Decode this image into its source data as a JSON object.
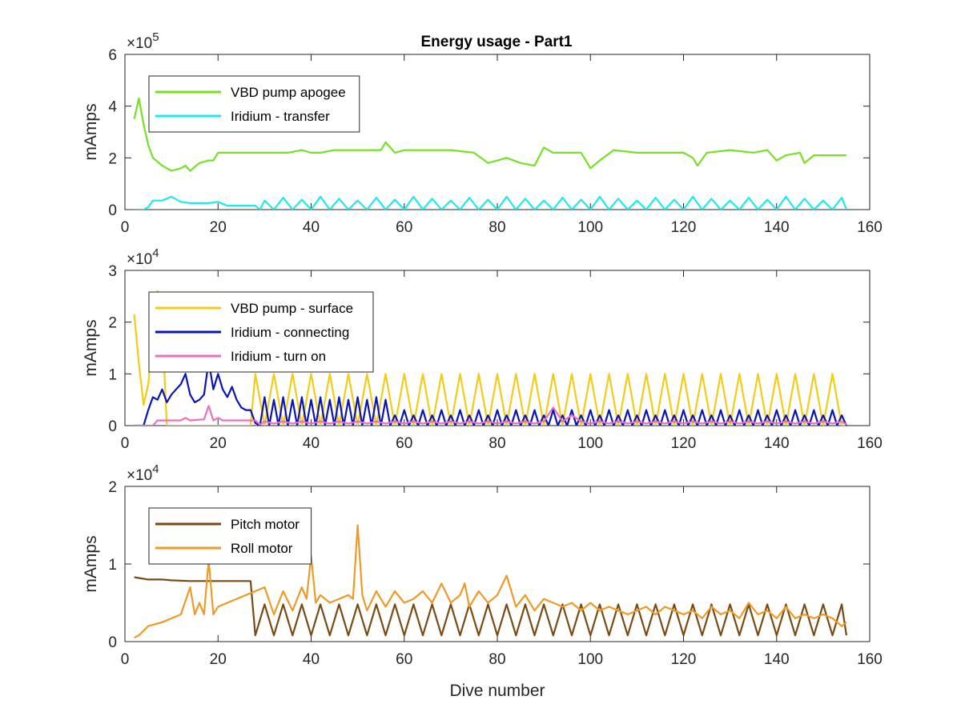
{
  "figure_title": "Energy usage - Part1",
  "colors": {
    "vbd_apogee": "#77e024",
    "iridium_transfer": "#1ee8f0",
    "vbd_surface": "#f2cc18",
    "iridium_connecting": "#0a14b4",
    "iridium_turn_on": "#ec6fbf",
    "pitch_motor": "#7a4a14",
    "roll_motor": "#ee9a26"
  },
  "chart_data": [
    {
      "type": "line",
      "title": "Energy usage - Part1",
      "xlabel": "",
      "ylabel": "mAmps",
      "exponent_label": "×10",
      "exponent_power": "5",
      "xlim": [
        0,
        160
      ],
      "ylim": [
        0,
        6
      ],
      "xticks": [
        "0",
        "20",
        "40",
        "60",
        "80",
        "100",
        "120",
        "140",
        "160"
      ],
      "yticks": [
        "0",
        "2",
        "4",
        "6"
      ],
      "legend_position": "top-left",
      "series": [
        {
          "name": "VBD pump apogee",
          "color_key": "vbd_apogee",
          "x": [
            2,
            3,
            4,
            5,
            6,
            8,
            10,
            12,
            13,
            14,
            16,
            18,
            19,
            20,
            25,
            30,
            35,
            38,
            40,
            42,
            45,
            50,
            55,
            56,
            58,
            60,
            65,
            70,
            75,
            78,
            80,
            82,
            85,
            88,
            90,
            92,
            95,
            98,
            100,
            102,
            105,
            110,
            115,
            120,
            122,
            123,
            125,
            130,
            135,
            138,
            140,
            142,
            145,
            146,
            148,
            150,
            155
          ],
          "y": [
            3.5,
            4.3,
            3.3,
            2.5,
            2.0,
            1.7,
            1.5,
            1.6,
            1.7,
            1.5,
            1.8,
            1.9,
            1.9,
            2.2,
            2.2,
            2.2,
            2.2,
            2.3,
            2.2,
            2.2,
            2.3,
            2.3,
            2.3,
            2.6,
            2.2,
            2.3,
            2.3,
            2.3,
            2.2,
            1.8,
            1.9,
            2.0,
            1.8,
            1.7,
            2.4,
            2.2,
            2.2,
            2.2,
            1.6,
            1.9,
            2.3,
            2.2,
            2.2,
            2.2,
            2.0,
            1.7,
            2.2,
            2.3,
            2.2,
            2.3,
            1.9,
            2.1,
            2.2,
            1.8,
            2.1,
            2.1,
            2.1
          ]
        },
        {
          "name": "Iridium - transfer",
          "color_key": "iridium_transfer",
          "pattern": "transfer"
        }
      ]
    },
    {
      "type": "line",
      "title": "",
      "xlabel": "",
      "ylabel": "mAmps",
      "exponent_label": "×10",
      "exponent_power": "4",
      "xlim": [
        0,
        160
      ],
      "ylim": [
        0,
        3
      ],
      "xticks": [
        "0",
        "20",
        "40",
        "60",
        "80",
        "100",
        "120",
        "140",
        "160"
      ],
      "yticks": [
        "0",
        "1",
        "2",
        "3"
      ],
      "legend_position": "top-left",
      "series": [
        {
          "name": "VBD pump - surface",
          "color_key": "vbd_surface",
          "pattern": "surface"
        },
        {
          "name": "Iridium - connecting",
          "color_key": "iridium_connecting",
          "pattern": "connecting"
        },
        {
          "name": "Iridium - turn on",
          "color_key": "iridium_turn_on",
          "pattern": "turnon"
        }
      ]
    },
    {
      "type": "line",
      "title": "",
      "xlabel": "Dive number",
      "ylabel": "mAmps",
      "exponent_label": "×10",
      "exponent_power": "4",
      "xlim": [
        0,
        160
      ],
      "ylim": [
        0,
        2
      ],
      "xticks": [
        "0",
        "20",
        "40",
        "60",
        "80",
        "100",
        "120",
        "140",
        "160"
      ],
      "yticks": [
        "0",
        "1",
        "2"
      ],
      "legend_position": "top-left",
      "series": [
        {
          "name": "Pitch motor",
          "color_key": "pitch_motor",
          "pattern": "pitch"
        },
        {
          "name": "Roll motor",
          "color_key": "roll_motor",
          "x": [
            2,
            3,
            5,
            8,
            10,
            12,
            14,
            15,
            16,
            17,
            18,
            19,
            20,
            22,
            24,
            26,
            28,
            30,
            32,
            34,
            36,
            38,
            39,
            40,
            41,
            42,
            44,
            46,
            48,
            49,
            50,
            51,
            52,
            54,
            56,
            58,
            60,
            62,
            64,
            66,
            68,
            70,
            72,
            73,
            74,
            76,
            78,
            80,
            82,
            84,
            86,
            88,
            90,
            92,
            94,
            96,
            98,
            100,
            102,
            104,
            106,
            108,
            110,
            112,
            114,
            116,
            118,
            120,
            122,
            124,
            126,
            128,
            130,
            132,
            134,
            136,
            138,
            140,
            142,
            144,
            146,
            148,
            150,
            152,
            154,
            155
          ],
          "y": [
            0.05,
            0.08,
            0.2,
            0.25,
            0.3,
            0.35,
            0.7,
            0.35,
            0.5,
            0.35,
            1.05,
            0.35,
            0.45,
            0.5,
            0.55,
            0.6,
            0.65,
            0.7,
            0.35,
            0.65,
            0.4,
            0.7,
            0.55,
            1.1,
            0.5,
            0.6,
            0.5,
            0.55,
            0.6,
            0.55,
            1.5,
            0.6,
            0.4,
            0.65,
            0.45,
            0.65,
            0.5,
            0.55,
            0.65,
            0.5,
            0.75,
            0.5,
            0.6,
            0.75,
            0.45,
            0.65,
            0.5,
            0.6,
            0.85,
            0.45,
            0.6,
            0.4,
            0.55,
            0.5,
            0.45,
            0.5,
            0.4,
            0.5,
            0.4,
            0.45,
            0.4,
            0.35,
            0.4,
            0.45,
            0.35,
            0.45,
            0.4,
            0.35,
            0.4,
            0.3,
            0.45,
            0.35,
            0.4,
            0.3,
            0.5,
            0.35,
            0.4,
            0.3,
            0.45,
            0.3,
            0.35,
            0.3,
            0.35,
            0.3,
            0.2,
            0.25
          ]
        }
      ]
    }
  ]
}
